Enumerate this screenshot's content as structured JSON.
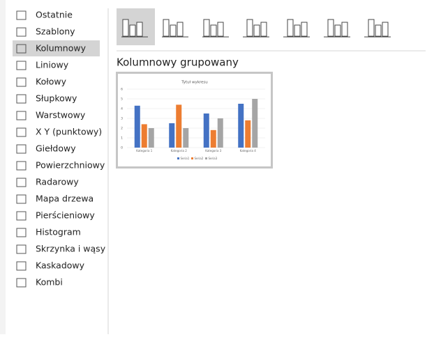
{
  "sidebar": {
    "items": [
      "Ostatnie",
      "Szablony",
      "Kolumnowy",
      "Liniowy",
      "Kołowy",
      "Słupkowy",
      "Warstwowy",
      "X Y (punktowy)",
      "Giełdowy",
      "Powierzchniowy",
      "Radarowy",
      "Mapa drzewa",
      "Pierścieniowy",
      "Histogram",
      "Skrzynka i wąsy",
      "Kaskadowy",
      "Kombi"
    ],
    "selected": 2
  },
  "subtype_title": "Kolumnowy grupowany",
  "preview": {
    "type": "bar",
    "title": "Tytuł wykresu",
    "categories": [
      "Kategoria 1",
      "Kategoria 2",
      "Kategoria 3",
      "Kategoria 4"
    ],
    "series": [
      {
        "name": "Seria1",
        "color": "#4472c4",
        "values": [
          4.3,
          2.5,
          3.5,
          4.5
        ]
      },
      {
        "name": "Seria2",
        "color": "#ed7d31",
        "values": [
          2.4,
          4.4,
          1.8,
          2.8
        ]
      },
      {
        "name": "Seria3",
        "color": "#a5a5a5",
        "values": [
          2,
          2,
          3,
          5
        ]
      }
    ],
    "ylim": [
      0,
      6
    ],
    "yticks": [
      0,
      1,
      2,
      3,
      4,
      5,
      6
    ],
    "grid": true
  }
}
